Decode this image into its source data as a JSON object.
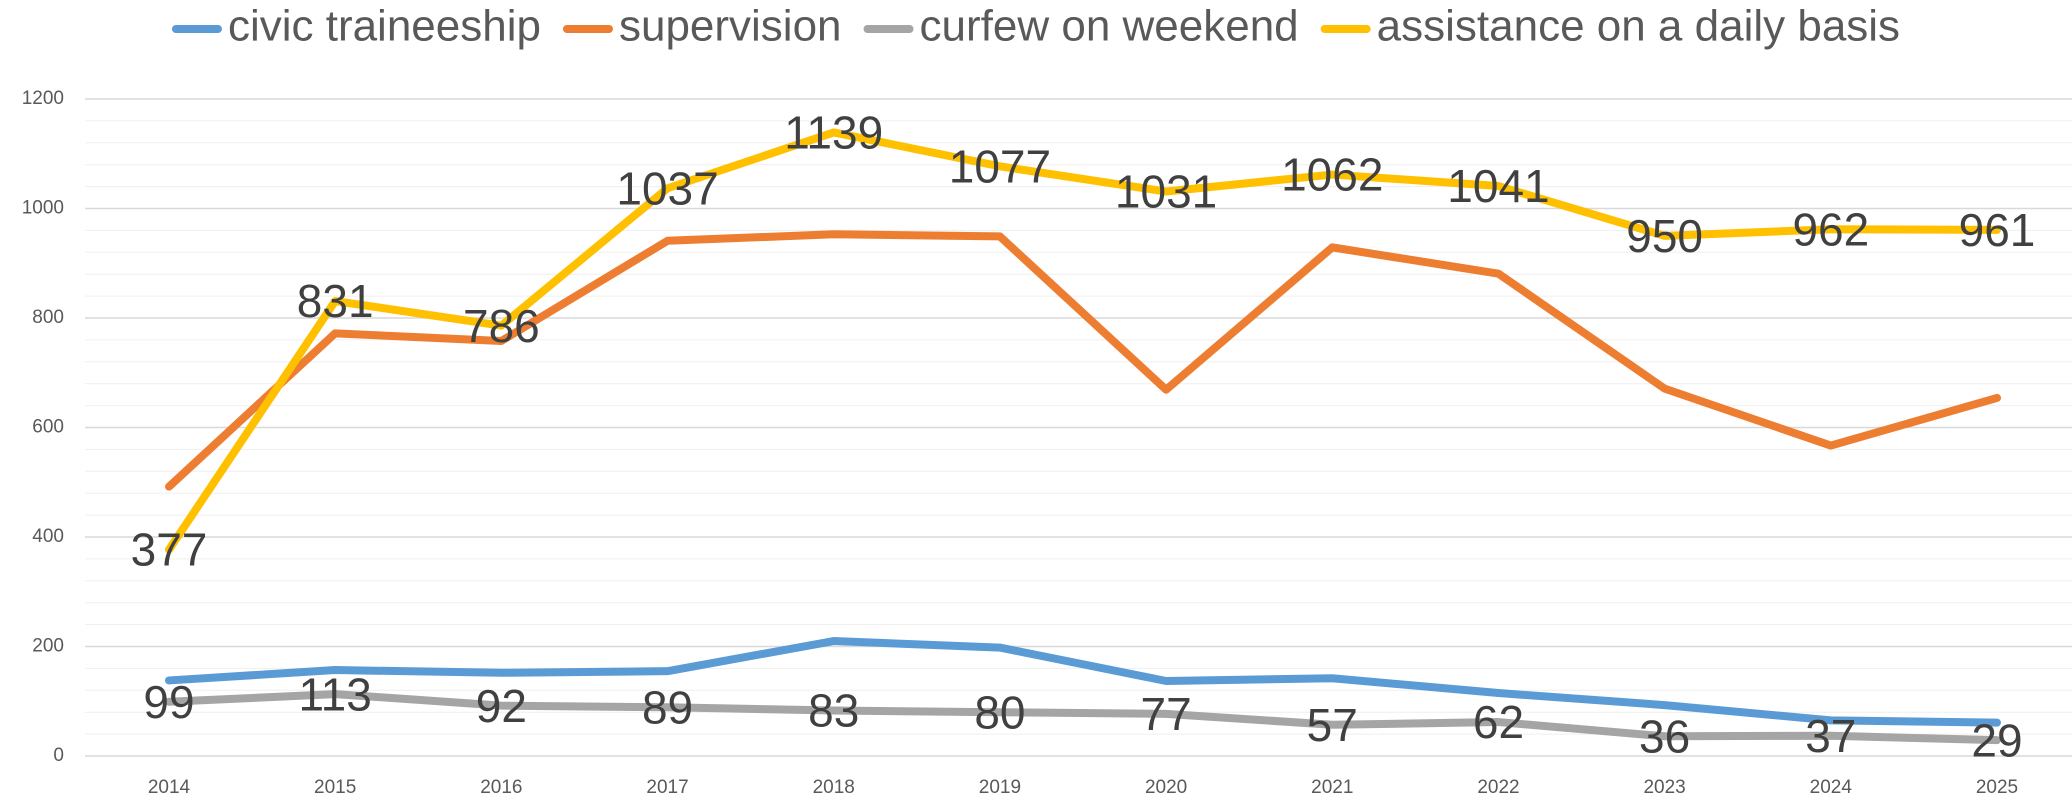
{
  "chart_data": {
    "type": "line",
    "x": [
      2014,
      2015,
      2016,
      2017,
      2018,
      2019,
      2020,
      2021,
      2022,
      2023,
      2024,
      2025
    ],
    "xlim": [
      2014,
      2025
    ],
    "ylim": [
      0,
      1200
    ],
    "yticks": [
      0,
      200,
      400,
      600,
      800,
      1000,
      1200
    ],
    "minor_yticks": [
      40,
      80,
      120,
      160,
      240,
      280,
      320,
      360,
      440,
      480,
      520,
      560,
      640,
      680,
      720,
      760,
      840,
      880,
      920,
      960,
      1040,
      1080,
      1120,
      1160
    ],
    "grid": true,
    "legend": "top",
    "series": [
      {
        "name": "civic traineeship",
        "color": "#5b9bd5",
        "values": [
          138,
          157,
          152,
          155,
          210,
          198,
          137,
          142,
          115,
          93,
          65,
          61
        ]
      },
      {
        "name": "supervision",
        "color": "#ed7d31",
        "values": [
          492,
          772,
          758,
          941,
          953,
          949,
          669,
          929,
          881,
          671,
          567,
          654
        ]
      },
      {
        "name": "curfew on weekend",
        "color": "#a5a5a5",
        "values": [
          99,
          113,
          92,
          89,
          83,
          80,
          77,
          57,
          62,
          36,
          37,
          29
        ],
        "labels": true
      },
      {
        "name": "assistance on a daily basis",
        "color": "#ffc000",
        "values": [
          377,
          831,
          786,
          1037,
          1139,
          1077,
          1031,
          1062,
          1041,
          950,
          962,
          961
        ],
        "labels": true
      }
    ]
  }
}
